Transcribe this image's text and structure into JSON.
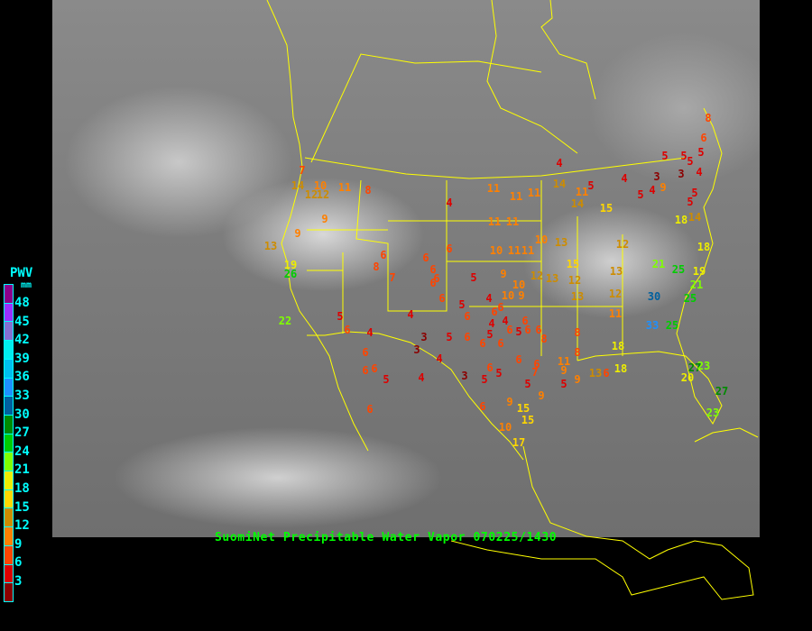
{
  "caption": "SuomiNet Precipitable Water Vapor 070225/1430",
  "legend": {
    "title": "PWV",
    "unit": "mm",
    "ticks": [
      "48",
      "45",
      "42",
      "39",
      "36",
      "33",
      "30",
      "27",
      "24",
      "21",
      "18",
      "15",
      "12",
      "9",
      "6",
      "3"
    ],
    "colors": [
      "#8b008b",
      "#9b30ff",
      "#8470d0",
      "#00eeee",
      "#00bfee",
      "#1e90ff",
      "#00609f",
      "#008b00",
      "#00cd00",
      "#7fff00",
      "#eeee00",
      "#ffd700",
      "#cd8c00",
      "#ff8000",
      "#ff4500",
      "#dd0000",
      "#8b0000"
    ]
  },
  "boundary_color": "#ffff00",
  "stations": [
    8,
    6,
    5,
    5,
    5,
    5,
    4,
    3,
    3,
    9,
    4,
    5,
    5,
    5,
    4,
    5,
    4,
    11,
    14,
    11,
    11,
    11,
    4,
    11,
    11,
    15,
    14,
    18,
    14,
    18,
    12,
    10,
    13,
    10,
    11,
    11,
    6,
    21,
    25,
    19,
    21,
    25,
    30,
    33,
    25,
    13,
    12,
    11,
    18,
    15,
    12,
    13,
    13,
    12,
    10,
    10,
    9,
    9,
    5,
    6,
    6,
    6,
    6,
    6,
    5,
    6,
    4,
    6,
    6,
    4,
    6,
    5,
    6,
    6,
    6,
    8,
    4,
    5,
    6,
    6,
    6,
    5,
    3,
    3,
    4,
    4,
    3,
    5,
    6,
    5,
    6,
    6,
    7,
    5,
    9,
    11,
    9,
    8,
    8,
    13,
    6,
    18,
    20,
    23,
    27,
    27,
    23,
    9,
    5,
    15,
    15,
    10,
    9,
    6,
    17,
    6,
    6,
    6,
    6,
    5,
    4,
    6,
    5,
    4,
    7,
    8,
    6,
    9,
    12,
    14,
    10,
    11,
    8,
    12,
    7,
    9,
    13,
    19,
    26,
    22
  ]
}
